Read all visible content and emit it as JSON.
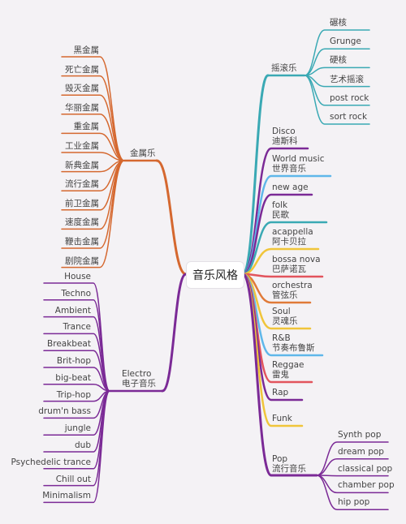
{
  "root": "音乐风格",
  "colors": {
    "metal": "#d5682f",
    "rock": "#3aa9b4",
    "purple": "#7b2a96",
    "blue": "#5fb7ea",
    "teal": "#3aa9b4",
    "yellow": "#f0c53a",
    "red": "#e2545d",
    "orange": "#e07a38"
  },
  "metal": {
    "label": "金属乐",
    "children": [
      "黑金属",
      "死亡金属",
      "毁灭金属",
      "华丽金属",
      "重金属",
      "工业金属",
      "新典金属",
      "流行金属",
      "前卫金属",
      "速度金属",
      "鞭击金属",
      "剧院金属"
    ]
  },
  "electro": {
    "label": "Electro\n电子音乐",
    "children": [
      "House",
      "Techno",
      "Ambient",
      "Trance",
      "Breakbeat",
      "Brit-hop",
      "big-beat",
      "Trip-hop",
      "drum'n bass",
      "jungle",
      "dub",
      "Psychedelic trance",
      "Chill out",
      "Minimalism"
    ]
  },
  "rock": {
    "label": "摇滚乐",
    "children": [
      "碾核",
      "Grunge",
      "硬核",
      "艺术摇滚",
      "post rock",
      "sort rock"
    ]
  },
  "right_genres": [
    {
      "label": "Disco\n迪斯科",
      "color": "purple"
    },
    {
      "label": "World music\n世界音乐",
      "color": "blue"
    },
    {
      "label": "new age",
      "color": "purple"
    },
    {
      "label": "folk\n民歌",
      "color": "teal"
    },
    {
      "label": "acappella\n阿卡贝拉",
      "color": "yellow"
    },
    {
      "label": "bossa nova\n巴萨诺瓦",
      "color": "red"
    },
    {
      "label": "orchestra\n管弦乐",
      "color": "orange"
    },
    {
      "label": "Soul\n灵魂乐",
      "color": "yellow"
    },
    {
      "label": "R&B\n节奏布鲁斯",
      "color": "blue"
    },
    {
      "label": "Reggae\n雷鬼",
      "color": "red"
    },
    {
      "label": "Rap",
      "color": "purple"
    },
    {
      "label": "Funk",
      "color": "yellow"
    }
  ],
  "pop": {
    "label": "Pop\n流行音乐",
    "children": [
      "Synth pop",
      "dream pop",
      "classical pop",
      "chamber pop",
      "hip pop"
    ]
  }
}
